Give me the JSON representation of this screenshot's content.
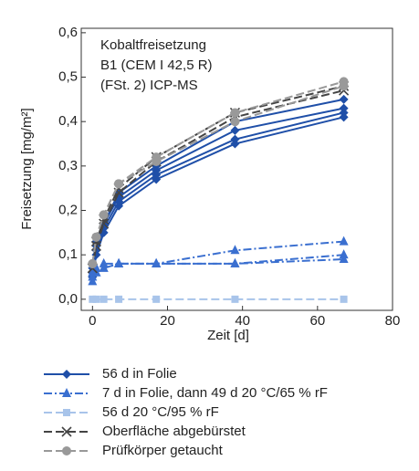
{
  "chart_data": {
    "type": "line",
    "annotation": [
      "Kobaltfreisetzung",
      "B1 (CEM I 42,5 R)",
      "(FSt. 2) ICP-MS"
    ],
    "xlabel": "Zeit [d]",
    "ylabel": "Freisetzung [mg/m²]",
    "x": [
      0,
      1,
      3,
      7,
      17,
      38,
      67
    ],
    "xlim": [
      -3,
      80
    ],
    "xticks": [
      0,
      20,
      40,
      60,
      80
    ],
    "ylim": [
      -0.025,
      0.61
    ],
    "yticks": [
      {
        "value": 0,
        "label": "0,0"
      },
      {
        "value": 0.1,
        "label": "0,1"
      },
      {
        "value": 0.2,
        "label": "0,2"
      },
      {
        "value": 0.3,
        "label": "0,3"
      },
      {
        "value": 0.4,
        "label": "0,4"
      },
      {
        "value": 0.5,
        "label": "0,5"
      },
      {
        "value": 0.6,
        "label": "0,6"
      }
    ],
    "series": [
      {
        "name": "56 d in Folie",
        "color": "#1f4fa8",
        "marker": "diamond",
        "dash": "solid",
        "lines": [
          [
            0.05,
            0.1,
            0.15,
            0.21,
            0.27,
            0.35,
            0.41
          ],
          [
            0.06,
            0.11,
            0.16,
            0.22,
            0.28,
            0.36,
            0.42
          ],
          [
            0.06,
            0.12,
            0.17,
            0.23,
            0.29,
            0.38,
            0.43
          ],
          [
            0.07,
            0.13,
            0.17,
            0.24,
            0.3,
            0.4,
            0.45
          ]
        ]
      },
      {
        "name": "7 d in Folie, dann 49 d 20 °C/65 % rF",
        "color": "#3a6fd0",
        "marker": "triangle",
        "dash": "dashdot",
        "lines": [
          [
            0.04,
            0.06,
            0.07,
            0.08,
            0.08,
            0.08,
            0.09
          ],
          [
            0.05,
            0.06,
            0.07,
            0.08,
            0.08,
            0.08,
            0.1
          ],
          [
            0.06,
            0.07,
            0.08,
            0.08,
            0.08,
            0.11,
            0.13
          ]
        ]
      },
      {
        "name": "56 d 20 °C/95 % rF",
        "color": "#a8c4ea",
        "marker": "square",
        "dash": "dashed",
        "lines": [
          [
            0.0,
            0.0,
            0.0,
            0.0,
            0.0,
            0.0,
            0.0
          ]
        ]
      },
      {
        "name": "Oberfläche abgebürstet",
        "color": "#444444",
        "marker": "x",
        "dash": "dashed",
        "lines": [
          [
            0.07,
            0.13,
            0.18,
            0.25,
            0.32,
            0.42,
            0.48
          ],
          [
            0.07,
            0.12,
            0.17,
            0.24,
            0.31,
            0.41,
            0.47
          ]
        ]
      },
      {
        "name": "Prüfkörper getaucht",
        "color": "#999999",
        "marker": "circle",
        "dash": "dashed",
        "lines": [
          [
            0.08,
            0.14,
            0.19,
            0.26,
            0.32,
            0.42,
            0.49
          ],
          [
            0.08,
            0.14,
            0.19,
            0.26,
            0.31,
            0.4,
            0.48
          ]
        ]
      }
    ]
  }
}
